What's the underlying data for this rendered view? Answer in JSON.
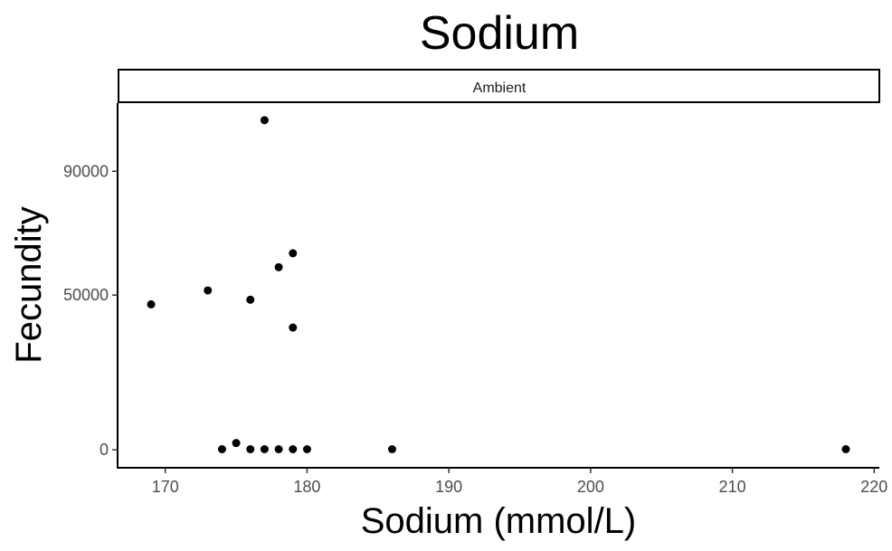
{
  "chart_data": {
    "type": "scatter",
    "title": "Sodium",
    "facet_label": "Ambient",
    "xlabel": "Sodium (mmol/L)",
    "ylabel": "Fecundity",
    "xlim": [
      166.7,
      220.3
    ],
    "ylim": [
      -5500,
      112000
    ],
    "x_ticks": [
      170,
      180,
      190,
      200,
      210,
      220
    ],
    "y_ticks": [
      0,
      50000,
      90000
    ],
    "grid": false,
    "legend": "none",
    "point_color": "#000000",
    "points": [
      {
        "x": 169,
        "y": 47000
      },
      {
        "x": 173,
        "y": 51500
      },
      {
        "x": 174,
        "y": 200
      },
      {
        "x": 175,
        "y": 2200
      },
      {
        "x": 176,
        "y": 48500
      },
      {
        "x": 176,
        "y": 200
      },
      {
        "x": 177,
        "y": 106500
      },
      {
        "x": 177,
        "y": 200
      },
      {
        "x": 178,
        "y": 59000
      },
      {
        "x": 178,
        "y": 200
      },
      {
        "x": 179,
        "y": 63500
      },
      {
        "x": 179,
        "y": 39500
      },
      {
        "x": 179,
        "y": 200
      },
      {
        "x": 180,
        "y": 200
      },
      {
        "x": 186,
        "y": 200
      },
      {
        "x": 218,
        "y": 200
      }
    ]
  }
}
